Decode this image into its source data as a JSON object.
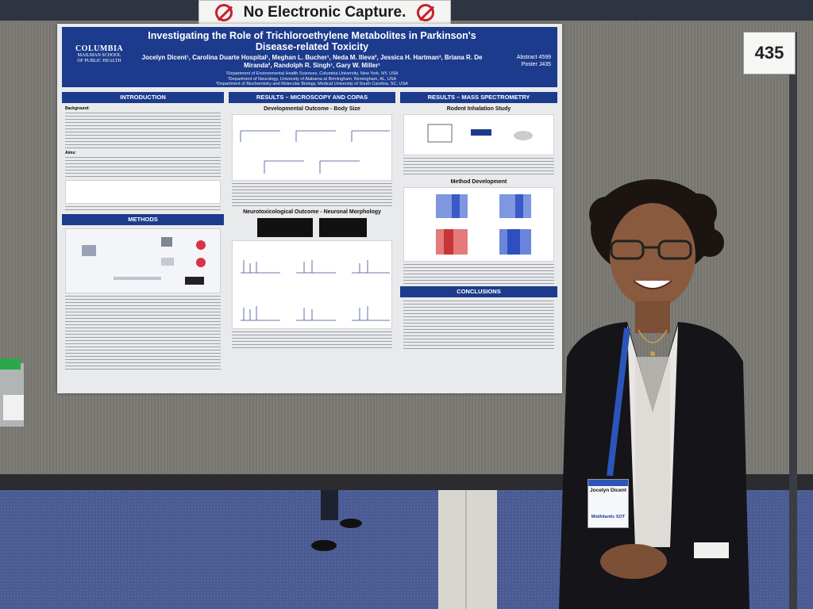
{
  "sign": {
    "text": "No Electronic Capture."
  },
  "booth": {
    "number": "435"
  },
  "poster": {
    "logo_main": "COLUMBIA",
    "logo_sub1": "MAILMAN SCHOOL",
    "logo_sub2": "OF PUBLIC HEALTH",
    "title": "Investigating the Role of Trichloroethylene Metabolites in Parkinson's Disease-related Toxicity",
    "authors": "Jocelyn Dicent¹, Carolina Duarte Hospital¹, Meghan L. Bucher¹, Neda M. Ilieva², Jessica H. Hartman³, Briana R. De Miranda², Randolph R. Singh¹, Gary W. Miller¹",
    "affil1": "¹Department of Environmental Health Sciences, Columbia University, New York, NY, USA",
    "affil2": "²Department of Neurology, University of Alabama at Birmingham, Birmingham, AL, USA",
    "affil3": "³Department of Biochemistry and Molecular Biology, Medical University of South Carolina, SC, USA",
    "abstract": "Abstract 4599",
    "poster_id": "Poster J435",
    "sections": {
      "intro": "INTRODUCTION",
      "methods": "METHODS",
      "results_micro": "RESULTS – MICROSCOPY AND COPAS",
      "results_ms": "RESULTS – MASS SPECTROMETRY",
      "conclusions": "CONCLUSIONS"
    },
    "subheads": {
      "dev": "Developmental Outcome - Body Size",
      "neuro": "Neurotoxicological Outcome - Neuronal Morphology",
      "rodent": "Rodent Inhalation Study",
      "method_dev": "Method Development"
    },
    "intro_background": "Background:",
    "intro_aims": "Aims:"
  },
  "badge": {
    "name": "Jocelyn Dicent",
    "org": "MidAtlantic SOT"
  },
  "colors": {
    "poster_blue": "#1c3b8c",
    "carpet": "#4a5a93",
    "board": "#7a7974"
  }
}
